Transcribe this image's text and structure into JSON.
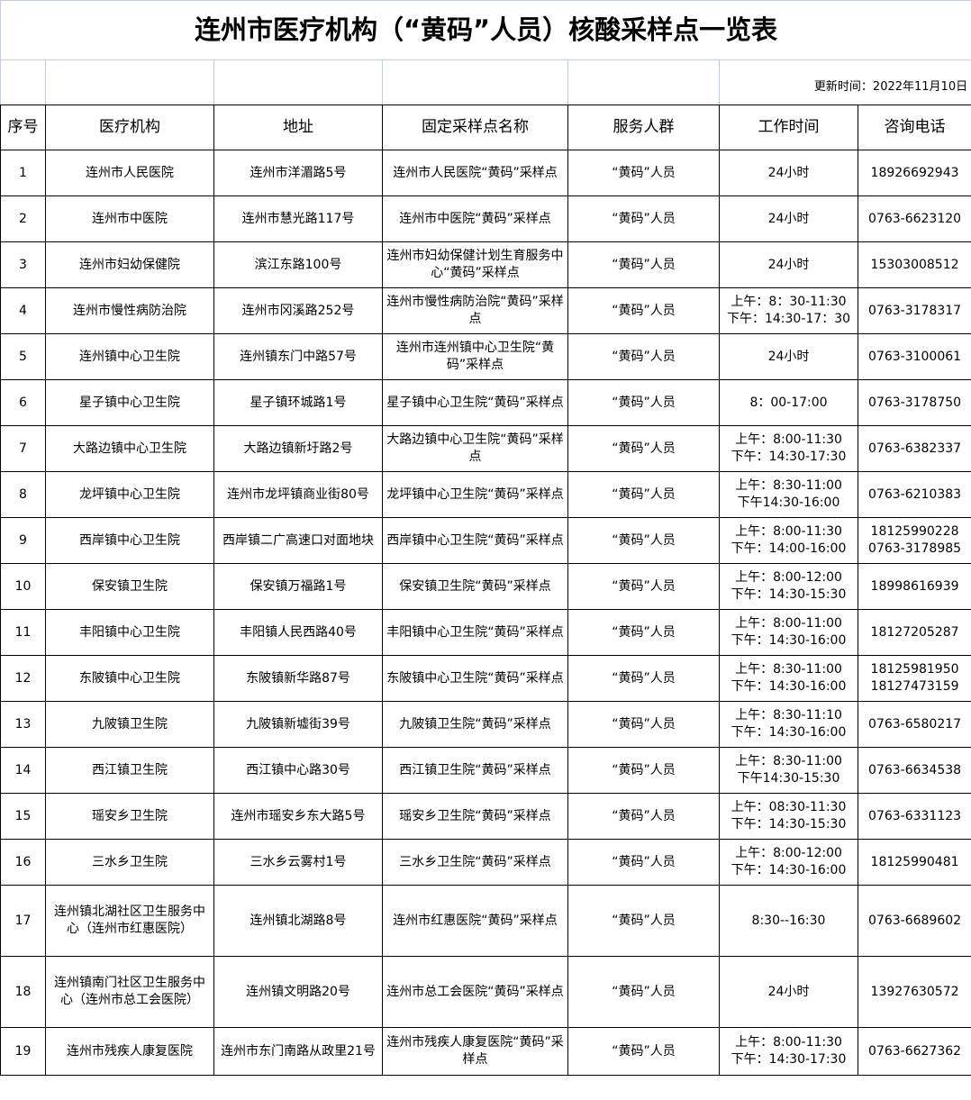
{
  "title": "连州市医疗机构（“黄码”人员）核酸采样点一览表",
  "update_time": "更新时间：2022年11月10日",
  "headers": [
    "序号",
    "医疗机构",
    "地址",
    "固定采样点名称",
    "服务人群",
    "工作时间",
    "咨询电话"
  ],
  "rows": [
    [
      "1",
      "连州市人民医院",
      "连州市洋湄路5号",
      "连州市人民医院“黄码”采样点",
      "“黄码”人员",
      "24小时",
      "18926692943"
    ],
    [
      "2",
      "连州市中医院",
      "连州市慧光路117号",
      "连州市中医院“黄码”采样点",
      "“黄码”人员",
      "24小时",
      "0763-6623120"
    ],
    [
      "3",
      "连州市妇幼保健院",
      "滨江东路100号",
      "连州市妇幼保健计划生育服务中心“黄码”采样点",
      "“黄码”人员",
      "24小时",
      "15303008512"
    ],
    [
      "4",
      "连州市慢性病防治院",
      "连州市冈溪路252号",
      "连州市慢性病防治院“黄码”采样点",
      "“黄码”人员",
      "上午：8：30-11:30\n下午：14:30-17：30",
      "0763-3178317"
    ],
    [
      "5",
      "连州镇中心卫生院",
      "连州镇东门中路57号",
      "连州市连州镇中心卫生院“黄码”采样点",
      "“黄码”人员",
      "24小时",
      "0763-3100061"
    ],
    [
      "6",
      "星子镇中心卫生院",
      "星子镇环城路1号",
      "星子镇中心卫生院“黄码”采样点",
      "“黄码”人员",
      "8：00-17:00",
      "0763-3178750"
    ],
    [
      "7",
      "大路边镇中心卫生院",
      "大路边镇新圩路2号",
      "大路边镇中心卫生院“黄码”采样点",
      "“黄码”人员",
      "上午：8:00-11:30\n下午：14:30-17:30",
      "0763-6382337"
    ],
    [
      "8",
      "龙坪镇中心卫生院",
      "连州市龙坪镇商业街80号",
      "龙坪镇中心卫生院“黄码”采样点",
      "“黄码”人员",
      "上午：8:30-11:00\n下午14:30-16:00",
      "0763-6210383"
    ],
    [
      "9",
      "西岸镇中心卫生院",
      "西岸镇二广高速口对面地块",
      "西岸镇中心卫生院“黄码”采样点",
      "“黄码”人员",
      "上午：8:00-11:30\n下午：14:00-16:00",
      "18125990228\n0763-3178985"
    ],
    [
      "10",
      "保安镇卫生院",
      "保安镇万福路1号",
      "保安镇卫生院“黄码”采样点",
      "“黄码”人员",
      "上午：8:00-12:00\n下午：14:30-15:30",
      "18998616939"
    ],
    [
      "11",
      "丰阳镇中心卫生院",
      "丰阳镇人民西路40号",
      "丰阳镇中心卫生院“黄码”采样点",
      "“黄码”人员",
      "上午：8:00-11:00\n下午：14:30-16:00",
      "18127205287"
    ],
    [
      "12",
      "东陂镇中心卫生院",
      "东陂镇新华路87号",
      "东陂镇中心卫生院“黄码”采样点",
      "“黄码”人员",
      "上午：8:30-11:00\n下午：14:30-16:00",
      "18125981950\n18127473159"
    ],
    [
      "13",
      "九陂镇卫生院",
      "九陂镇新墟街39号",
      "九陂镇卫生院“黄码”采样点",
      "“黄码”人员",
      "上午：8:30-11:10\n下午：14:30-16:00",
      "0763-6580217"
    ],
    [
      "14",
      "西江镇卫生院",
      "西江镇中心路30号",
      "西江镇卫生院“黄码”采样点",
      "“黄码”人员",
      "上午：8:30-11:00\n下午14:30-15:30",
      "0763-6634538"
    ],
    [
      "15",
      "瑶安乡卫生院",
      "连州市瑶安乡东大路5号",
      "瑶安乡卫生院“黄码”采样点",
      "“黄码”人员",
      "上午：08:30-11:30\n下午：14:30-15:30",
      "0763-6331123"
    ],
    [
      "16",
      "三水乡卫生院",
      "三水乡云雾村1号",
      "三水乡卫生院“黄码”采样点",
      "“黄码”人员",
      "上午：8:00-12:00\n下午：14:30-16:00",
      "18125990481"
    ],
    [
      "17",
      "连州镇北湖社区卫生服务中心（连州市红惠医院）",
      "连州镇北湖路8号",
      "连州市红惠医院“黄码”采样点",
      "“黄码”人员",
      "8:30--16:30",
      "0763-6689602"
    ],
    [
      "18",
      "连州镇南门社区卫生服务中心（连州市总工会医院）",
      "连州镇文明路20号",
      "连州市总工会医院“黄码”采样点",
      "“黄码”人员",
      "24小时",
      "13927630572"
    ],
    [
      "19",
      "连州市残疾人康复医院",
      "连州市东门南路从政里21号",
      "连州市残疾人康复医院“黄码”采样点",
      "“黄码”人员",
      "上午：8:00-11:30\n下午：14:30-17:30",
      "0763-6627362"
    ]
  ]
}
